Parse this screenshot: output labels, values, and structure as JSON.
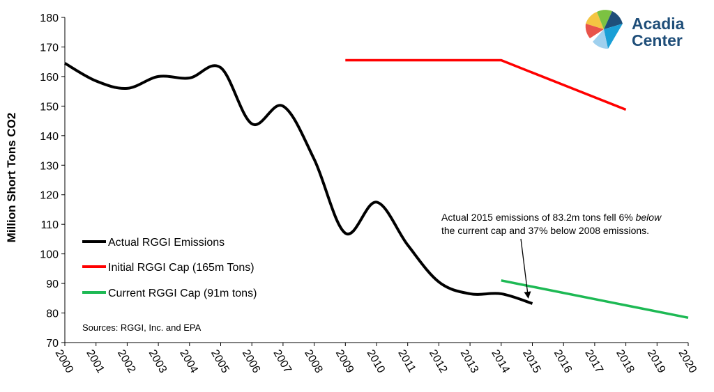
{
  "chart_data": {
    "type": "line",
    "title": "",
    "ylabel": "Million Short Tons CO2",
    "xlabel": "",
    "ylim": [
      70,
      180
    ],
    "yticks": [
      "70",
      "80",
      "90",
      "100",
      "110",
      "120",
      "130",
      "140",
      "150",
      "160",
      "170",
      "180"
    ],
    "x": [
      "2000",
      "2001",
      "2002",
      "2003",
      "2004",
      "2005",
      "2006",
      "2007",
      "2008",
      "2009",
      "2010",
      "2011",
      "2012",
      "2013",
      "2014",
      "2015",
      "2016",
      "2017",
      "2018",
      "2019",
      "2020"
    ],
    "series": [
      {
        "name": "Actual RGGI Emissions",
        "color": "#000000",
        "points": [
          [
            2000,
            164.5
          ],
          [
            2001,
            158.5
          ],
          [
            2002,
            156
          ],
          [
            2003,
            160
          ],
          [
            2004,
            159.5
          ],
          [
            2005,
            163
          ],
          [
            2006,
            144
          ],
          [
            2007,
            150
          ],
          [
            2008,
            132
          ],
          [
            2009,
            107
          ],
          [
            2010,
            117.5
          ],
          [
            2011,
            103
          ],
          [
            2012,
            90.5
          ],
          [
            2013,
            86.5
          ],
          [
            2014,
            86.5
          ],
          [
            2015,
            83.2
          ]
        ]
      },
      {
        "name": "Initial RGGI Cap (165m Tons)",
        "color": "#ff0000",
        "points": [
          [
            2009,
            165.5
          ],
          [
            2014,
            165.5
          ],
          [
            2018,
            148.8
          ]
        ]
      },
      {
        "name": "Current RGGI Cap (91m tons)",
        "color": "#1db954",
        "points": [
          [
            2014,
            91.0
          ],
          [
            2020,
            78.4
          ]
        ]
      }
    ],
    "source": "Sources: RGGI, Inc. and EPA",
    "annotation": {
      "line1": "Actual 2015 emissions of 83.2m tons fell 6% ",
      "line1_italic": "below",
      "line2": "the current cap and 37% below 2008 emissions.",
      "arrow_target": [
        2015,
        83.2
      ]
    }
  },
  "logo": {
    "line1": "Acadia",
    "line2": "Center",
    "colors": [
      "#f4c542",
      "#e8534a",
      "#7cc242",
      "#1a9fd6",
      "#1f4e79"
    ]
  }
}
